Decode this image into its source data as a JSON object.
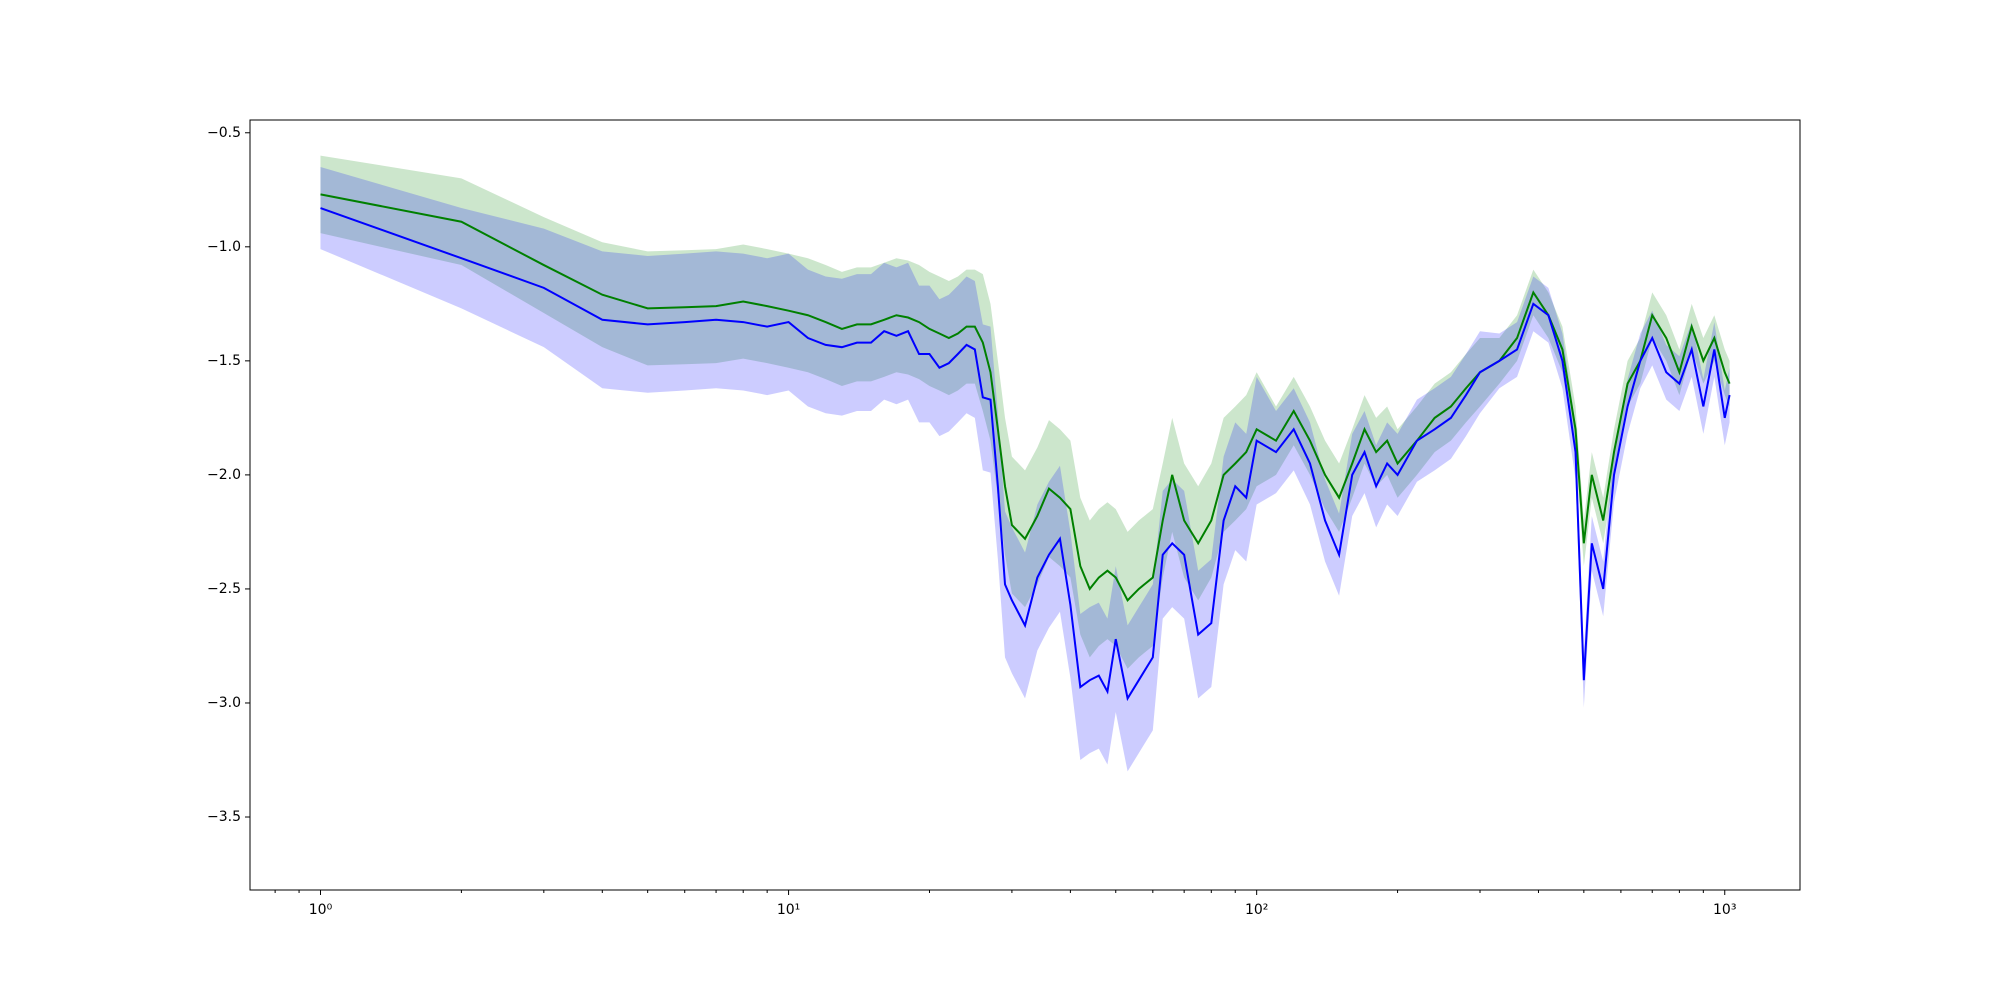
{
  "chart_data": {
    "type": "line",
    "xscale": "log",
    "x": [
      1,
      2,
      3,
      4,
      5,
      6,
      7,
      8,
      9,
      10,
      11,
      12,
      13,
      14,
      15,
      16,
      17,
      18,
      19,
      20,
      21,
      22,
      23,
      24,
      25,
      26,
      27,
      28,
      29,
      30,
      32,
      34,
      36,
      38,
      40,
      42,
      44,
      46,
      48,
      50,
      53,
      56,
      60,
      63,
      66,
      70,
      75,
      80,
      85,
      90,
      95,
      100,
      110,
      120,
      130,
      140,
      150,
      160,
      170,
      180,
      190,
      200,
      220,
      240,
      260,
      280,
      300,
      330,
      360,
      390,
      420,
      450,
      480,
      500,
      520,
      550,
      580,
      620,
      660,
      700,
      750,
      800,
      850,
      900,
      950,
      1000,
      1024
    ],
    "series": [
      {
        "color": "#008000",
        "values": [
          -0.77,
          -0.89,
          -1.08,
          -1.21,
          -1.27,
          -1.265,
          -1.26,
          -1.24,
          -1.26,
          -1.28,
          -1.3,
          -1.33,
          -1.36,
          -1.34,
          -1.34,
          -1.32,
          -1.3,
          -1.31,
          -1.33,
          -1.36,
          -1.38,
          -1.4,
          -1.38,
          -1.35,
          -1.35,
          -1.42,
          -1.55,
          -1.8,
          -2.05,
          -2.22,
          -2.28,
          -2.18,
          -2.06,
          -2.1,
          -2.15,
          -2.4,
          -2.5,
          -2.45,
          -2.42,
          -2.45,
          -2.55,
          -2.5,
          -2.45,
          -2.2,
          -2.0,
          -2.2,
          -2.3,
          -2.2,
          -2.0,
          -1.95,
          -1.9,
          -1.8,
          -1.85,
          -1.72,
          -1.85,
          -2.0,
          -2.1,
          -1.95,
          -1.8,
          -1.9,
          -1.85,
          -1.95,
          -1.85,
          -1.75,
          -1.7,
          -1.62,
          -1.55,
          -1.5,
          -1.4,
          -1.2,
          -1.3,
          -1.45,
          -1.8,
          -2.3,
          -2.0,
          -2.2,
          -1.9,
          -1.6,
          -1.5,
          -1.3,
          -1.4,
          -1.55,
          -1.35,
          -1.5,
          -1.4,
          -1.55,
          -1.6
        ],
        "errors": [
          0.17,
          0.19,
          0.21,
          0.23,
          0.25,
          0.25,
          0.25,
          0.25,
          0.25,
          0.25,
          0.25,
          0.25,
          0.25,
          0.25,
          0.25,
          0.25,
          0.25,
          0.25,
          0.25,
          0.25,
          0.25,
          0.25,
          0.25,
          0.25,
          0.25,
          0.3,
          0.3,
          0.3,
          0.3,
          0.3,
          0.3,
          0.3,
          0.3,
          0.3,
          0.3,
          0.3,
          0.3,
          0.3,
          0.3,
          0.3,
          0.3,
          0.3,
          0.3,
          0.25,
          0.25,
          0.25,
          0.25,
          0.25,
          0.25,
          0.25,
          0.25,
          0.25,
          0.15,
          0.15,
          0.15,
          0.15,
          0.15,
          0.15,
          0.15,
          0.15,
          0.15,
          0.15,
          0.15,
          0.15,
          0.15,
          0.15,
          0.15,
          0.1,
          0.1,
          0.1,
          0.1,
          0.1,
          0.1,
          0.1,
          0.1,
          0.1,
          0.1,
          0.1,
          0.1,
          0.1,
          0.1,
          0.1,
          0.1,
          0.1,
          0.1,
          0.1,
          0.1
        ]
      },
      {
        "color": "#0000ff",
        "values": [
          -0.83,
          -1.05,
          -1.18,
          -1.32,
          -1.34,
          -1.33,
          -1.32,
          -1.33,
          -1.35,
          -1.33,
          -1.4,
          -1.43,
          -1.44,
          -1.42,
          -1.42,
          -1.37,
          -1.39,
          -1.37,
          -1.47,
          -1.47,
          -1.53,
          -1.51,
          -1.47,
          -1.43,
          -1.45,
          -1.66,
          -1.67,
          -2.05,
          -2.48,
          -2.55,
          -2.66,
          -2.45,
          -2.35,
          -2.28,
          -2.57,
          -2.93,
          -2.9,
          -2.88,
          -2.95,
          -2.72,
          -2.98,
          -2.9,
          -2.8,
          -2.35,
          -2.3,
          -2.35,
          -2.7,
          -2.65,
          -2.2,
          -2.05,
          -2.1,
          -1.85,
          -1.9,
          -1.8,
          -1.95,
          -2.2,
          -2.35,
          -2.0,
          -1.9,
          -2.05,
          -1.95,
          -2.0,
          -1.85,
          -1.8,
          -1.75,
          -1.65,
          -1.55,
          -1.5,
          -1.45,
          -1.25,
          -1.3,
          -1.5,
          -1.9,
          -2.9,
          -2.3,
          -2.5,
          -2.0,
          -1.7,
          -1.5,
          -1.4,
          -1.55,
          -1.6,
          -1.45,
          -1.7,
          -1.45,
          -1.75,
          -1.65
        ],
        "errors": [
          0.18,
          0.22,
          0.26,
          0.3,
          0.3,
          0.3,
          0.3,
          0.3,
          0.3,
          0.3,
          0.3,
          0.3,
          0.3,
          0.3,
          0.3,
          0.3,
          0.3,
          0.3,
          0.3,
          0.3,
          0.3,
          0.3,
          0.3,
          0.3,
          0.3,
          0.32,
          0.32,
          0.32,
          0.32,
          0.32,
          0.32,
          0.32,
          0.32,
          0.32,
          0.32,
          0.32,
          0.32,
          0.32,
          0.32,
          0.32,
          0.32,
          0.32,
          0.32,
          0.28,
          0.28,
          0.28,
          0.28,
          0.28,
          0.28,
          0.28,
          0.28,
          0.28,
          0.18,
          0.18,
          0.18,
          0.18,
          0.18,
          0.18,
          0.18,
          0.18,
          0.18,
          0.18,
          0.18,
          0.18,
          0.18,
          0.18,
          0.18,
          0.12,
          0.12,
          0.12,
          0.12,
          0.12,
          0.12,
          0.12,
          0.12,
          0.12,
          0.12,
          0.12,
          0.12,
          0.12,
          0.12,
          0.12,
          0.12,
          0.12,
          0.12,
          0.12,
          0.12
        ]
      }
    ],
    "band_opacity": 0.2,
    "xlim": [
      0.707,
      1448
    ],
    "xticks": [
      {
        "value": 1,
        "label": "10⁰"
      },
      {
        "value": 10,
        "label": "10¹"
      },
      {
        "value": 100,
        "label": "10²"
      },
      {
        "value": 1000,
        "label": "10³"
      }
    ],
    "xminorticks": [
      0.8,
      0.9,
      2,
      3,
      4,
      5,
      6,
      7,
      8,
      9,
      20,
      30,
      40,
      50,
      60,
      70,
      80,
      90,
      200,
      300,
      400,
      500,
      600,
      700,
      800,
      900
    ],
    "ylim": [
      -3.82,
      -0.444
    ],
    "yticks": [
      {
        "value": -3.5,
        "label": "−3.5"
      },
      {
        "value": -3.0,
        "label": "−3.0"
      },
      {
        "value": -2.5,
        "label": "−2.5"
      },
      {
        "value": -2.0,
        "label": "−2.0"
      },
      {
        "value": -1.5,
        "label": "−1.5"
      },
      {
        "value": -1.0,
        "label": "−1.0"
      },
      {
        "value": -0.5,
        "label": "−0.5"
      }
    ]
  }
}
